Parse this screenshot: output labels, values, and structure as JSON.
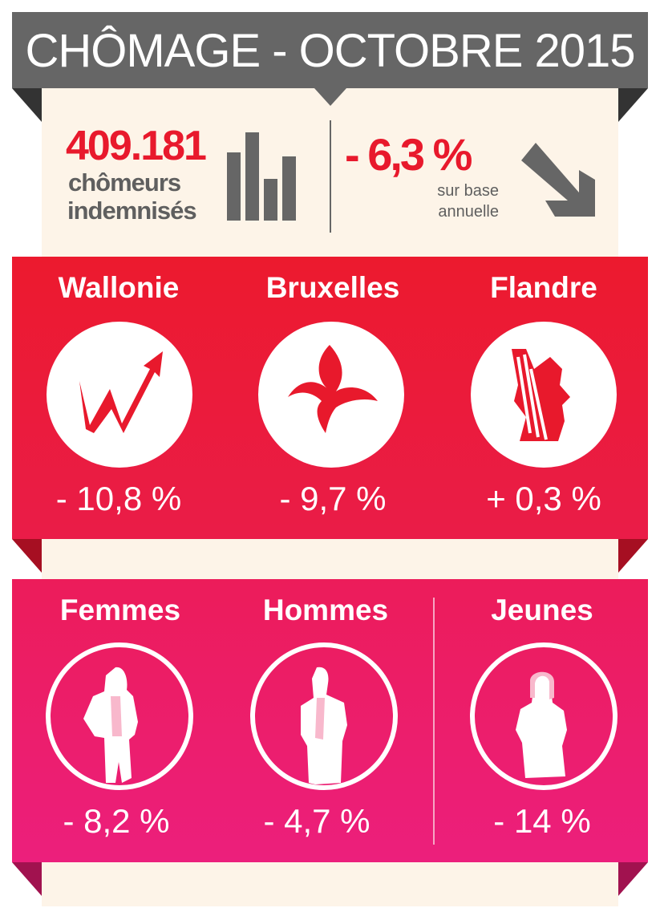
{
  "header": {
    "title": "CHÔMAGE - OCTOBRE 2015"
  },
  "summary": {
    "count": "409.181",
    "count_label_1": "chômeurs",
    "count_label_2": "indemnisés",
    "change": "- 6,3 %",
    "change_label_1": "sur base",
    "change_label_2": "annuelle",
    "icons": [
      "bar-chart-icon",
      "arrow-down-right-icon"
    ]
  },
  "regions": [
    {
      "name": "Wallonie",
      "change": "- 10,8 %",
      "icon": "wallonia-rooster-logo"
    },
    {
      "name": "Bruxelles",
      "change": "- 9,7 %",
      "icon": "brussels-iris-logo"
    },
    {
      "name": "Flandre",
      "change": "+ 0,3 %",
      "icon": "flanders-lion-logo"
    }
  ],
  "groups": [
    {
      "name": "Femmes",
      "change": "- 8,2 %",
      "icon": "woman-silhouette-icon"
    },
    {
      "name": "Hommes",
      "change": "- 4,7 %",
      "icon": "man-silhouette-icon"
    },
    {
      "name": "Jeunes",
      "change": "- 14 %",
      "icon": "youth-silhouette-icon"
    }
  ],
  "colors": {
    "banner": "#666666",
    "red": "#ec1a2e",
    "pink": "#ec1c6a",
    "cream": "#fdf4e8",
    "accent_text": "#e8192c"
  }
}
